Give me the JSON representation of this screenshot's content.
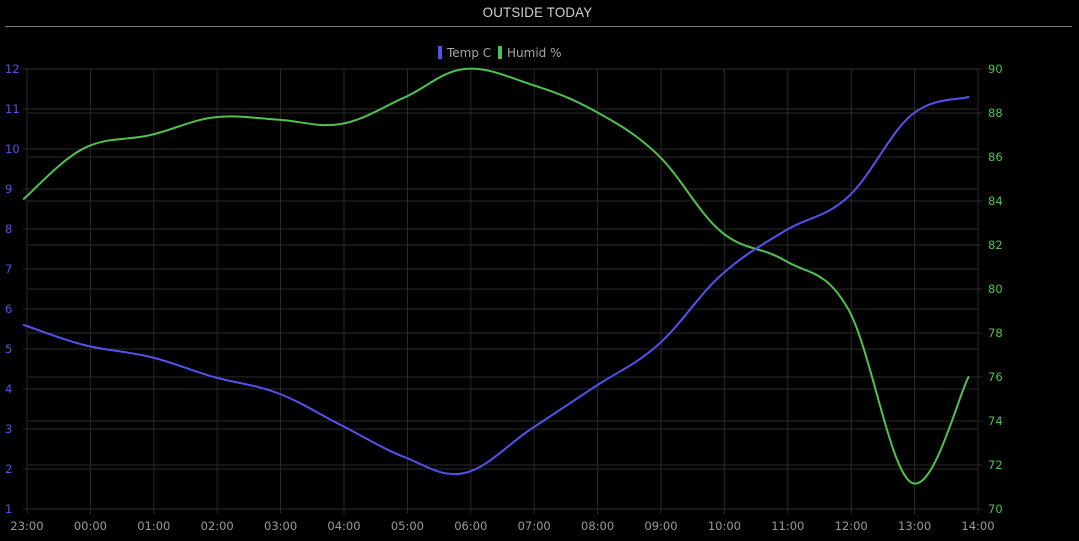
{
  "widget": {
    "title": "OUTSIDE TODAY"
  },
  "colors": {
    "background": "#000000",
    "grid": "#2a2a2a",
    "temp": "#5252f0",
    "humid": "#4ec24e",
    "x_tick": "#9a9a9a"
  },
  "chart_data": {
    "type": "line",
    "title": "",
    "grid": true,
    "legend": "top-center",
    "x": [
      "23:00",
      "00:00",
      "01:00",
      "02:00",
      "03:00",
      "04:00",
      "05:00",
      "06:00",
      "07:00",
      "08:00",
      "09:00",
      "10:00",
      "11:00",
      "12:00",
      "13:00",
      "14:00"
    ],
    "series": [
      {
        "name": "Temp C",
        "axis": "left",
        "color": "#5252f0",
        "points": [
          [
            -0.05,
            5.6
          ],
          [
            0.9,
            5.1
          ],
          [
            1.95,
            4.8
          ],
          [
            2.95,
            4.3
          ],
          [
            3.95,
            3.9
          ],
          [
            4.95,
            3.1
          ],
          [
            5.95,
            2.3
          ],
          [
            6.9,
            1.9
          ],
          [
            7.95,
            3.0
          ],
          [
            8.95,
            4.05
          ],
          [
            9.95,
            5.1
          ],
          [
            10.95,
            6.85
          ],
          [
            11.95,
            7.95
          ],
          [
            12.95,
            8.8
          ],
          [
            13.95,
            10.85
          ],
          [
            14.85,
            11.3
          ]
        ]
      },
      {
        "name": "Humid %",
        "axis": "right",
        "color": "#4ec24e",
        "points": [
          [
            -0.05,
            84.1
          ],
          [
            0.9,
            86.4
          ],
          [
            1.95,
            87.0
          ],
          [
            2.95,
            87.8
          ],
          [
            3.95,
            87.7
          ],
          [
            4.95,
            87.5
          ],
          [
            5.95,
            88.7
          ],
          [
            6.9,
            90.0
          ],
          [
            7.95,
            89.3
          ],
          [
            8.95,
            88.1
          ],
          [
            9.95,
            86.1
          ],
          [
            10.95,
            82.6
          ],
          [
            11.95,
            81.3
          ],
          [
            12.95,
            79.1
          ],
          [
            13.95,
            71.2
          ],
          [
            14.85,
            76.0
          ]
        ]
      }
    ],
    "y_left": {
      "ylim": [
        1,
        12
      ],
      "ticks": [
        "1",
        "2",
        "3",
        "4",
        "5",
        "6",
        "7",
        "8",
        "9",
        "10",
        "11",
        "12"
      ]
    },
    "y_right": {
      "ylim": [
        70,
        90
      ],
      "ticks": [
        "70",
        "72",
        "74",
        "76",
        "78",
        "80",
        "82",
        "84",
        "86",
        "88",
        "90"
      ]
    }
  }
}
